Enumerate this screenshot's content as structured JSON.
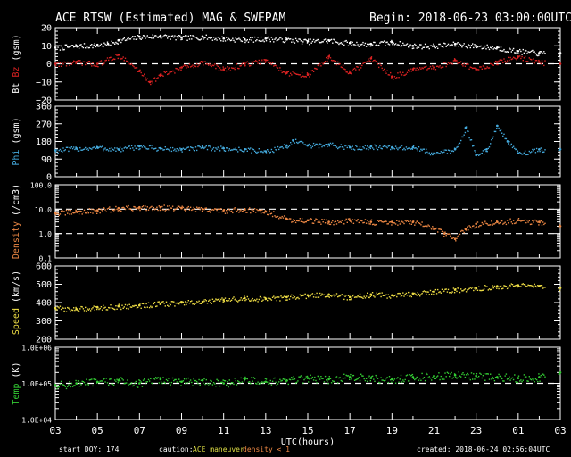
{
  "header": {
    "title": "ACE RTSW (Estimated) MAG & SWEPAM",
    "begin": "Begin: 2018-06-23 03:00:00UTC"
  },
  "footer": {
    "start_doy": "start DOY: 174",
    "caution_label": "caution:",
    "caution_text": "ACE maneuver",
    "density_note": "density < 1",
    "created": "created: 2018-06-24 02:56:04UTC"
  },
  "colors": {
    "axis": "#ffffff",
    "bt": "#ffffff",
    "bz": "#dd2222",
    "phi": "#44aadd",
    "density": "#ee8844",
    "speed": "#eedd44",
    "temp": "#33cc33"
  },
  "chart_data": {
    "type": "scatter",
    "x_axis": {
      "label": "UTC(hours)",
      "range_hours": [
        0,
        24
      ],
      "tick_labels": [
        "03",
        "05",
        "07",
        "09",
        "11",
        "13",
        "15",
        "17",
        "19",
        "21",
        "23",
        "01",
        "03"
      ]
    },
    "panels": [
      {
        "id": "mag",
        "ylabel_parts": [
          {
            "text": "Bt",
            "color_key": "bt"
          },
          {
            "text": " Bz",
            "color_key": "bz"
          },
          {
            "text": " (gsm)",
            "color_key": "axis"
          }
        ],
        "yscale": "linear",
        "ylim": [
          -20,
          20
        ],
        "ticks": [
          -20,
          -10,
          0,
          10,
          20
        ],
        "tick_labels": [
          "−20",
          "−10",
          "0",
          "10",
          "20"
        ],
        "reference_lines": [
          0
        ],
        "series": [
          {
            "name": "Bt",
            "color_key": "bt",
            "points": [
              [
                0,
                9
              ],
              [
                1,
                10
              ],
              [
                2,
                10.5
              ],
              [
                2.5,
                11
              ],
              [
                3,
                13
              ],
              [
                4,
                15
              ],
              [
                5,
                15.5
              ],
              [
                6,
                14.5
              ],
              [
                7,
                15
              ],
              [
                8,
                14
              ],
              [
                9,
                13.5
              ],
              [
                10,
                14
              ],
              [
                11,
                13.5
              ],
              [
                12,
                12.5
              ],
              [
                13,
                13
              ],
              [
                14,
                11.5
              ],
              [
                15,
                11
              ],
              [
                16,
                12
              ],
              [
                17,
                10
              ],
              [
                18,
                10
              ],
              [
                19,
                11
              ],
              [
                20,
                10
              ],
              [
                21,
                9
              ],
              [
                22,
                7
              ],
              [
                23,
                6
              ],
              [
                24,
                6
              ]
            ],
            "gaps": [
              [
                23.3,
                23.9
              ]
            ]
          },
          {
            "name": "Bz",
            "color_key": "bz",
            "points": [
              [
                0,
                0
              ],
              [
                1,
                1
              ],
              [
                2,
                0
              ],
              [
                3,
                5
              ],
              [
                4,
                -4
              ],
              [
                4.5,
                -10
              ],
              [
                5,
                -6
              ],
              [
                6,
                -2
              ],
              [
                7,
                1
              ],
              [
                8,
                -3
              ],
              [
                9,
                0
              ],
              [
                10,
                2
              ],
              [
                11,
                -5
              ],
              [
                12,
                -6
              ],
              [
                13,
                4
              ],
              [
                14,
                -5
              ],
              [
                15,
                3
              ],
              [
                16,
                -7
              ],
              [
                17,
                -3
              ],
              [
                18,
                -2
              ],
              [
                19,
                2
              ],
              [
                20,
                -3
              ],
              [
                21,
                1
              ],
              [
                22,
                4
              ],
              [
                23,
                1
              ],
              [
                24,
                0
              ]
            ],
            "gaps": [
              [
                23.3,
                23.9
              ]
            ]
          }
        ]
      },
      {
        "id": "phi",
        "ylabel_parts": [
          {
            "text": "Phi",
            "color_key": "phi"
          },
          {
            "text": " (gsm)",
            "color_key": "axis"
          }
        ],
        "yscale": "linear",
        "ylim": [
          0,
          360
        ],
        "ticks": [
          0,
          90,
          180,
          270,
          360
        ],
        "tick_labels": [
          "0",
          "90",
          "180",
          "270",
          "360"
        ],
        "series": [
          {
            "name": "Phi",
            "color_key": "phi",
            "points": [
              [
                0,
                135
              ],
              [
                1,
                145
              ],
              [
                2,
                150
              ],
              [
                3,
                140
              ],
              [
                4,
                155
              ],
              [
                5,
                145
              ],
              [
                6,
                140
              ],
              [
                7,
                150
              ],
              [
                8,
                145
              ],
              [
                9,
                140
              ],
              [
                10,
                130
              ],
              [
                11,
                160
              ],
              [
                11.3,
                185
              ],
              [
                12,
                160
              ],
              [
                13,
                165
              ],
              [
                14,
                150
              ],
              [
                15,
                155
              ],
              [
                16,
                150
              ],
              [
                17,
                150
              ],
              [
                18,
                120
              ],
              [
                19,
                140
              ],
              [
                19.5,
                250
              ],
              [
                20,
                110
              ],
              [
                20.5,
                140
              ],
              [
                21,
                260
              ],
              [
                21.5,
                180
              ],
              [
                22,
                120
              ],
              [
                23,
                140
              ],
              [
                24,
                140
              ]
            ],
            "gaps": [
              [
                23.3,
                23.9
              ]
            ]
          }
        ]
      },
      {
        "id": "density",
        "ylabel_parts": [
          {
            "text": "Density",
            "color_key": "density"
          },
          {
            "text": " (/cm3)",
            "color_key": "axis"
          }
        ],
        "yscale": "log",
        "ylim": [
          0.1,
          100
        ],
        "ticks": [
          0.1,
          1.0,
          10.0,
          100.0
        ],
        "tick_labels": [
          "0.1",
          "1.0",
          "10.0",
          "100.0"
        ],
        "reference_lines": [
          1.0,
          10.0
        ],
        "series": [
          {
            "name": "Density",
            "color_key": "density",
            "points": [
              [
                0,
                7
              ],
              [
                1,
                8
              ],
              [
                2,
                9
              ],
              [
                3,
                11
              ],
              [
                4,
                12
              ],
              [
                5,
                12
              ],
              [
                6,
                11
              ],
              [
                7,
                10
              ],
              [
                8,
                9
              ],
              [
                9,
                10
              ],
              [
                10,
                8
              ],
              [
                11,
                4
              ],
              [
                12,
                3.5
              ],
              [
                13,
                3
              ],
              [
                14,
                3.5
              ],
              [
                15,
                3
              ],
              [
                16,
                3
              ],
              [
                17,
                3
              ],
              [
                18,
                1.5
              ],
              [
                18.5,
                1
              ],
              [
                19,
                0.6
              ],
              [
                19.5,
                1.5
              ],
              [
                20,
                2.5
              ],
              [
                21,
                3
              ],
              [
                22,
                3.5
              ],
              [
                23,
                3
              ],
              [
                24,
                2
              ]
            ],
            "gaps": [
              [
                23.3,
                23.9
              ]
            ]
          }
        ]
      },
      {
        "id": "speed",
        "ylabel_parts": [
          {
            "text": "Speed",
            "color_key": "speed"
          },
          {
            "text": " (km/s)",
            "color_key": "axis"
          }
        ],
        "yscale": "linear",
        "ylim": [
          200,
          600
        ],
        "ticks": [
          200,
          300,
          400,
          500,
          600
        ],
        "tick_labels": [
          "200",
          "300",
          "400",
          "500",
          "600"
        ],
        "series": [
          {
            "name": "Speed",
            "color_key": "speed",
            "points": [
              [
                0,
                370
              ],
              [
                1,
                365
              ],
              [
                2,
                375
              ],
              [
                3,
                380
              ],
              [
                4,
                385
              ],
              [
                5,
                395
              ],
              [
                6,
                400
              ],
              [
                7,
                405
              ],
              [
                8,
                415
              ],
              [
                9,
                425
              ],
              [
                10,
                420
              ],
              [
                11,
                430
              ],
              [
                12,
                440
              ],
              [
                13,
                445
              ],
              [
                14,
                430
              ],
              [
                15,
                445
              ],
              [
                16,
                440
              ],
              [
                17,
                450
              ],
              [
                18,
                460
              ],
              [
                19,
                470
              ],
              [
                20,
                480
              ],
              [
                21,
                490
              ],
              [
                22,
                495
              ],
              [
                23,
                490
              ],
              [
                24,
                480
              ]
            ],
            "gaps": [
              [
                23.3,
                23.9
              ]
            ]
          }
        ]
      },
      {
        "id": "temp",
        "ylabel_parts": [
          {
            "text": "Temp",
            "color_key": "temp"
          },
          {
            "text": " (K)",
            "color_key": "axis"
          }
        ],
        "yscale": "log",
        "ylim": [
          10000,
          1000000
        ],
        "ticks": [
          10000,
          100000,
          1000000
        ],
        "tick_labels": [
          "1.0E+04",
          "1.0E+05",
          "1.0E+06"
        ],
        "reference_lines": [
          100000
        ],
        "series": [
          {
            "name": "Temp",
            "color_key": "temp",
            "points": [
              [
                0,
                90000
              ],
              [
                1,
                100000
              ],
              [
                2,
                110000
              ],
              [
                3,
                120000
              ],
              [
                4,
                100000
              ],
              [
                5,
                130000
              ],
              [
                6,
                110000
              ],
              [
                7,
                120000
              ],
              [
                8,
                100000
              ],
              [
                9,
                130000
              ],
              [
                10,
                110000
              ],
              [
                11,
                120000
              ],
              [
                12,
                140000
              ],
              [
                13,
                130000
              ],
              [
                14,
                150000
              ],
              [
                15,
                140000
              ],
              [
                16,
                130000
              ],
              [
                17,
                150000
              ],
              [
                18,
                160000
              ],
              [
                19,
                170000
              ],
              [
                20,
                160000
              ],
              [
                21,
                150000
              ],
              [
                22,
                140000
              ],
              [
                23,
                150000
              ],
              [
                24,
                200000
              ]
            ],
            "gaps": [
              [
                23.3,
                23.9
              ]
            ]
          }
        ]
      }
    ]
  }
}
